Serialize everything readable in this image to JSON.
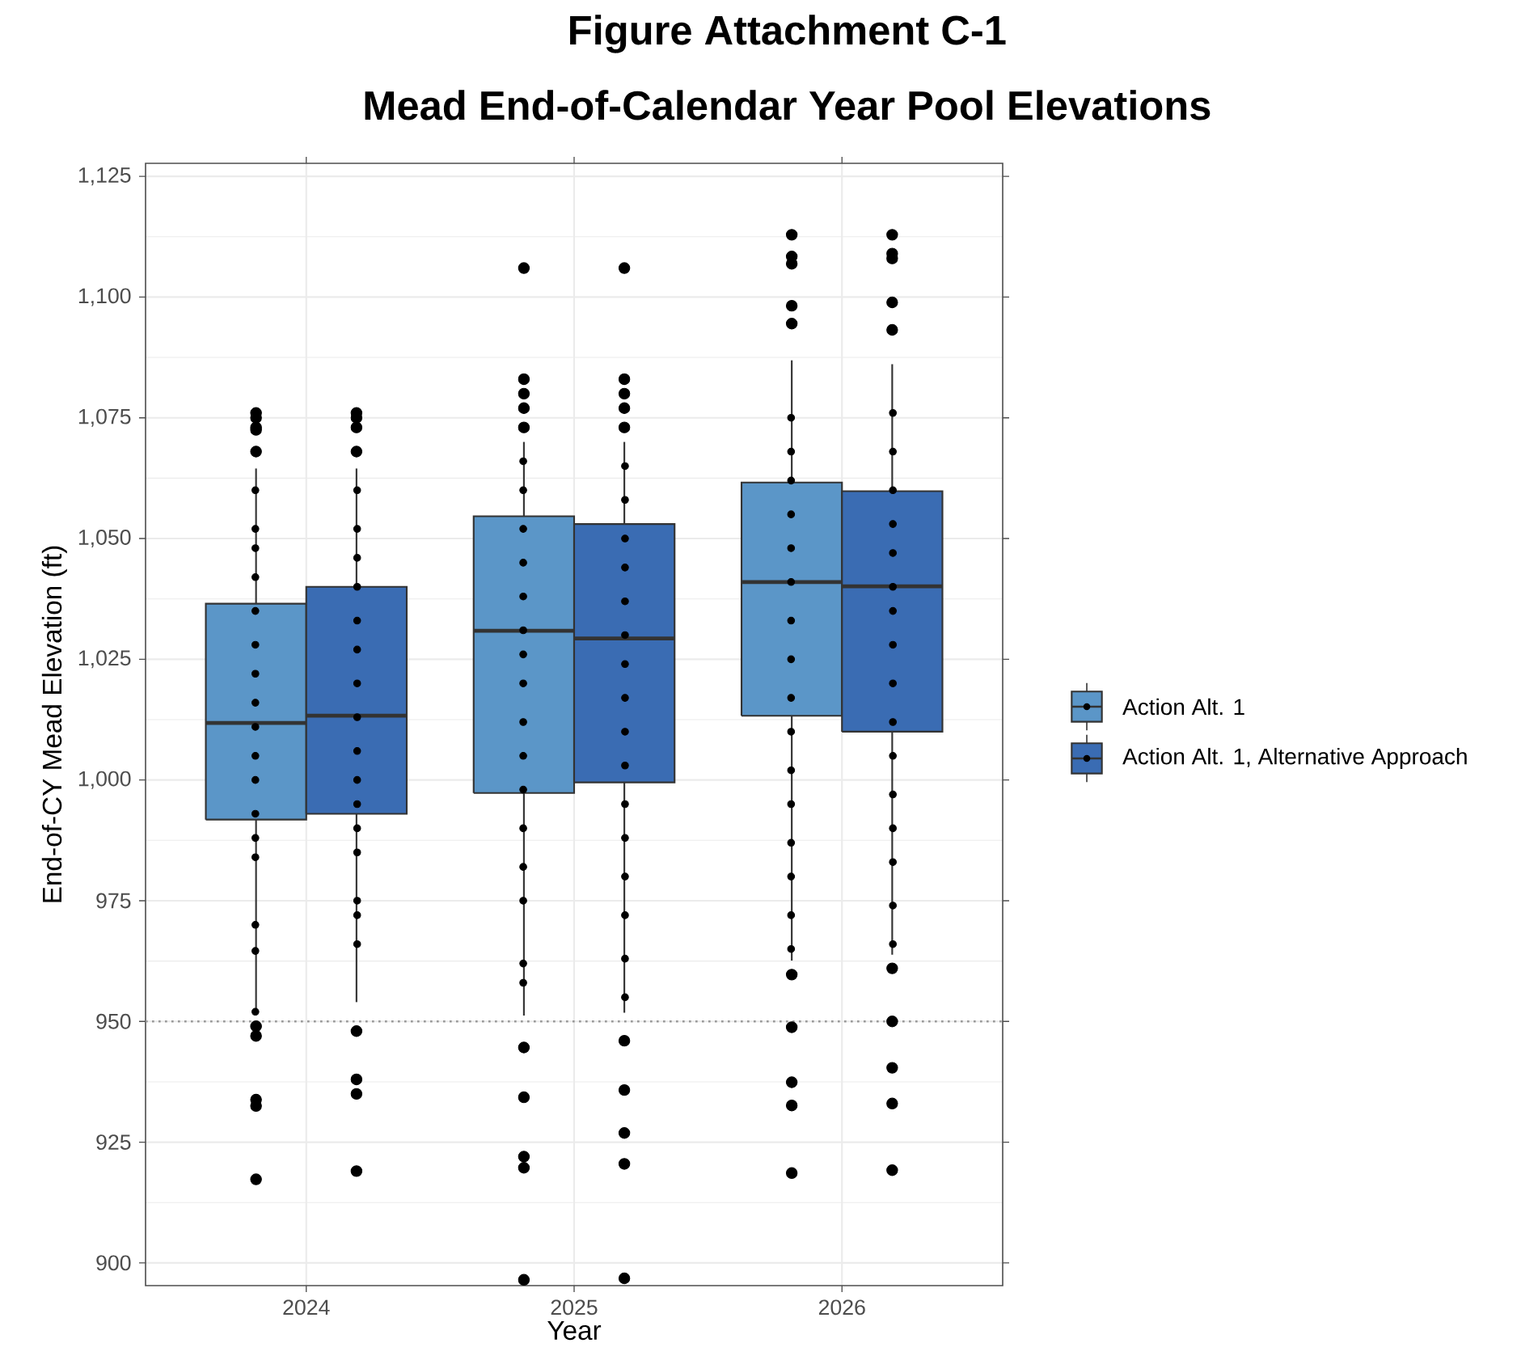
{
  "chart_data": {
    "type": "box",
    "title": "Figure Attachment C-1",
    "subtitle": "Mead End-of-Calendar Year Pool Elevations",
    "xlabel": "Year",
    "ylabel": "End-of-CY Mead Elevation (ft)",
    "series": [
      {
        "name": "Action Alt. 1",
        "color": "#5b96c8",
        "x": [
          2024,
          2025,
          2026
        ],
        "boxes": [
          {
            "low": 951.8,
            "q1": 991.8,
            "median": 1011.8,
            "q3": 1036.5,
            "high": 1064.5,
            "outliers": [
              1076,
              1075,
              1073,
              1072.5,
              1068,
              949,
              947,
              933.8,
              932.5,
              917.3
            ]
          },
          {
            "low": 951.2,
            "q1": 997.3,
            "median": 1030.9,
            "q3": 1054.6,
            "high": 1070,
            "outliers": [
              1106,
              1083,
              1080,
              1077,
              1073,
              944.6,
              934.3,
              922,
              919.7,
              896.5
            ]
          },
          {
            "low": 962.6,
            "q1": 1013.3,
            "median": 1041,
            "q3": 1061.6,
            "high": 1086.9,
            "outliers": [
              1112.9,
              1108.4,
              1106.9,
              1098.2,
              1094.5,
              959.7,
              948.8,
              937.4,
              932.6,
              918.6
            ]
          }
        ]
      },
      {
        "name": "Action Alt. 1, Alternative Approach",
        "color": "#3a6cb3",
        "x": [
          2024,
          2025,
          2026
        ],
        "boxes": [
          {
            "low": 954,
            "q1": 993,
            "median": 1013.3,
            "q3": 1040,
            "high": 1064.5,
            "outliers": [
              1076,
              1075,
              1073,
              1068,
              948,
              938,
              935,
              919
            ]
          },
          {
            "low": 951.8,
            "q1": 999.5,
            "median": 1029.3,
            "q3": 1053,
            "high": 1070,
            "outliers": [
              1106,
              1083,
              1080,
              1077,
              1073,
              946,
              935.8,
              926.9,
              920.5,
              896.8
            ]
          },
          {
            "low": 963.8,
            "q1": 1010,
            "median": 1040.1,
            "q3": 1059.8,
            "high": 1086.1,
            "outliers": [
              1112.9,
              1109,
              1108,
              1098.9,
              1093.2,
              961,
              950,
              940.4,
              933,
              919.2
            ]
          }
        ]
      },
      {
        "type": "scatter",
        "color": "#000000",
        "x": [
          2023.81,
          2023.81,
          2023.81,
          2023.81,
          2023.81,
          2023.81,
          2023.81,
          2023.81,
          2023.81,
          2023.81,
          2023.81,
          2023.81,
          2023.81,
          2023.81,
          2023.81,
          2023.81,
          2023.81,
          2024.81,
          2024.81,
          2024.81,
          2024.81,
          2024.81,
          2024.81,
          2024.81,
          2024.81,
          2024.81,
          2024.81,
          2024.81,
          2024.81,
          2024.81,
          2024.81,
          2024.81,
          2024.81,
          2025.81,
          2025.81,
          2025.81,
          2025.81,
          2025.81,
          2025.81,
          2025.81,
          2025.81,
          2025.81,
          2025.81,
          2025.81,
          2025.81,
          2025.81,
          2025.81,
          2025.81,
          2025.81
        ],
        "values": [
          952,
          964.6,
          970,
          984,
          988,
          993,
          1000,
          1005,
          1011,
          1016,
          1022,
          1028,
          1035,
          1042,
          1048,
          1052,
          1060,
          958,
          962,
          975,
          982,
          990,
          998,
          1005,
          1012,
          1020,
          1026,
          1031,
          1038,
          1045,
          1052,
          1060,
          1066,
          965,
          972,
          980,
          987,
          995,
          1002,
          1010,
          1017,
          1025,
          1033,
          1041,
          1048,
          1055,
          1062,
          1068,
          1075
        ]
      },
      {
        "type": "scatter",
        "color": "#000000",
        "x": [
          2024.19,
          2024.19,
          2024.19,
          2024.19,
          2024.19,
          2024.19,
          2024.19,
          2024.19,
          2024.19,
          2024.19,
          2024.19,
          2024.19,
          2024.19,
          2024.19,
          2024.19,
          2024.19,
          2025.19,
          2025.19,
          2025.19,
          2025.19,
          2025.19,
          2025.19,
          2025.19,
          2025.19,
          2025.19,
          2025.19,
          2025.19,
          2025.19,
          2025.19,
          2025.19,
          2025.19,
          2025.19,
          2026.19,
          2026.19,
          2026.19,
          2026.19,
          2026.19,
          2026.19,
          2026.19,
          2026.19,
          2026.19,
          2026.19,
          2026.19,
          2026.19,
          2026.19,
          2026.19,
          2026.19,
          2026.19
        ],
        "values": [
          966,
          972,
          975,
          985,
          990,
          995,
          1000,
          1006,
          1013,
          1020,
          1027,
          1033,
          1040,
          1046,
          1052,
          1060,
          955,
          963,
          972,
          980,
          988,
          995,
          1003,
          1010,
          1017,
          1024,
          1030,
          1037,
          1044,
          1050,
          1058,
          1065,
          966,
          974,
          983,
          990,
          997,
          1005,
          1012,
          1020,
          1028,
          1035,
          1040,
          1047,
          1053,
          1060,
          1068,
          1076
        ]
      }
    ],
    "xlim": [
      2023.4,
      2026.6
    ],
    "xticks": [
      2024,
      2025,
      2026
    ],
    "ylim": [
      895.3,
      1127.7
    ],
    "yticks": [
      900,
      925,
      950,
      975,
      {
        "value": 1000,
        "label": "1,000"
      },
      {
        "value": 1025,
        "label": "1,025"
      },
      {
        "value": 1050,
        "label": "1,050"
      },
      {
        "value": 1075,
        "label": "1,075"
      },
      {
        "value": 1100,
        "label": "1,100"
      },
      {
        "value": 1125,
        "label": "1,125"
      }
    ],
    "grid": true,
    "legend": "right",
    "ref_lines": [
      {
        "axis": "y",
        "value": 950,
        "color": "#999999",
        "line_style": "dotted"
      }
    ]
  }
}
